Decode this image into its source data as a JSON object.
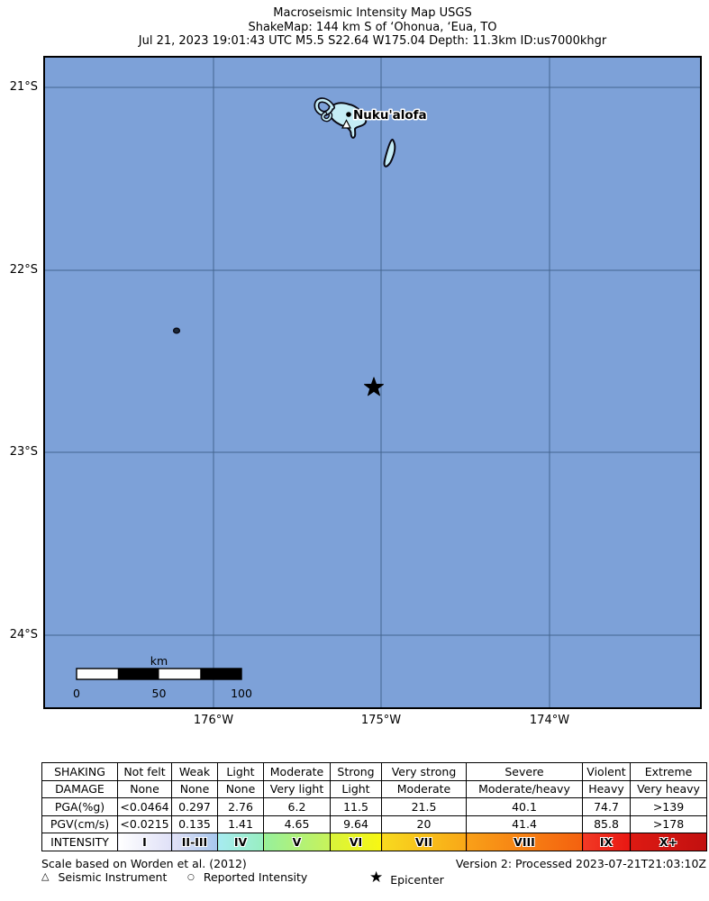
{
  "title": {
    "line1": "Macroseismic Intensity Map USGS",
    "line2": "ShakeMap: 144 km S of ‘Ohonua, ‘Eua, TO",
    "line3": "Jul 21, 2023 19:01:43 UTC M5.5 S22.64 W175.04 Depth: 11.3km ID:us7000khgr"
  },
  "map": {
    "ocean_color": "#7da1d8",
    "gridline_color": "#44658f",
    "island_fill": "#c5edf6",
    "island_outline": "#0b0b16",
    "city_label": "Nuku'alofa",
    "lat_labels": [
      "21°S",
      "22°S",
      "23°S",
      "24°S"
    ],
    "lon_labels": [
      "176°W",
      "175°W",
      "174°W"
    ],
    "scale_bar": {
      "unit": "km",
      "tick0": "0",
      "tick1": "50",
      "tick2": "100"
    }
  },
  "legend_table": {
    "rows": [
      {
        "cells": [
          "SHAKING",
          "Not felt",
          "Weak",
          "Light",
          "Moderate",
          "Strong",
          "Very strong",
          "Severe",
          "Violent",
          "Extreme"
        ]
      },
      {
        "cells": [
          "DAMAGE",
          "None",
          "None",
          "None",
          "Very light",
          "Light",
          "Moderate",
          "Moderate/heavy",
          "Heavy",
          "Very heavy"
        ]
      },
      {
        "cells": [
          "PGA(%g)",
          "<0.0464",
          "0.297",
          "2.76",
          "6.2",
          "11.5",
          "21.5",
          "40.1",
          "74.7",
          ">139"
        ]
      },
      {
        "cells": [
          "PGV(cm/s)",
          "<0.0215",
          "0.135",
          "1.41",
          "4.65",
          "9.64",
          "20",
          "41.4",
          "85.8",
          ">178"
        ]
      },
      {
        "cells": [
          "INTENSITY",
          "I",
          "II-III",
          "IV",
          "V",
          "VI",
          "VII",
          "VIII",
          "IX",
          "X+"
        ],
        "is_intensity": true
      }
    ],
    "intensity_gradients": [
      [
        "#ffffff",
        "#dfe0f7"
      ],
      [
        "#e2e1f6",
        "#a6c7ee"
      ],
      [
        "#a7ebf1",
        "#98efc0"
      ],
      [
        "#97f09c",
        "#c8f359"
      ],
      [
        "#d9f43b",
        "#f8f712"
      ],
      [
        "#f8da1f",
        "#f9a717"
      ],
      [
        "#f9a018",
        "#f4610f"
      ],
      [
        "#f23a25",
        "#e91712"
      ],
      [
        "#dd1a12",
        "#c21010"
      ]
    ]
  },
  "footer": {
    "scale_note": "Scale based on Worden et al. (2012)",
    "version_note": "Version 2: Processed 2023-07-21T21:03:10Z",
    "legend": [
      {
        "symbol": "△",
        "label": "Seismic Instrument"
      },
      {
        "symbol": "○",
        "label": "Reported Intensity"
      },
      {
        "symbol": "★",
        "label": "Epicenter"
      }
    ]
  }
}
